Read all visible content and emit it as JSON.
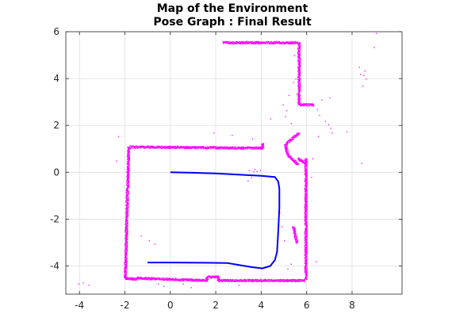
{
  "chart_data": {
    "type": "scatter",
    "title": "Map of the Environment",
    "subtitle": "Pose Graph : Final Result",
    "xlabel": "",
    "ylabel": "",
    "xlim": [
      -4.6,
      10.2
    ],
    "ylim": [
      -5.2,
      6.0
    ],
    "x_ticks": [
      -4,
      -2,
      0,
      2,
      4,
      6,
      8
    ],
    "y_ticks": [
      -4,
      -2,
      0,
      2,
      4,
      6
    ],
    "grid": true,
    "colors": {
      "map": "#ff00ff",
      "path": "#0000ff",
      "grid": "#dfdfdf",
      "axes": "#262626"
    },
    "series": [
      {
        "role": "map",
        "walls": [
          {
            "from": [
              -1.8,
              1.1
            ],
            "to": [
              4.05,
              1.05
            ]
          },
          {
            "from": [
              4.05,
              1.05
            ],
            "to": [
              4.05,
              1.25
            ]
          },
          {
            "from": [
              -1.85,
              1.1
            ],
            "to": [
              -2.0,
              -4.5
            ]
          },
          {
            "from": [
              -2.0,
              -4.5
            ],
            "to": [
              -1.5,
              -4.55
            ]
          },
          {
            "from": [
              -1.5,
              -4.5
            ],
            "to": [
              1.6,
              -4.6
            ]
          },
          {
            "from": [
              1.6,
              -4.6
            ],
            "to": [
              1.6,
              -4.45
            ]
          },
          {
            "from": [
              1.6,
              -4.45
            ],
            "to": [
              2.1,
              -4.45
            ]
          },
          {
            "from": [
              2.1,
              -4.45
            ],
            "to": [
              2.1,
              -4.6
            ]
          },
          {
            "from": [
              2.1,
              -4.6
            ],
            "to": [
              5.9,
              -4.6
            ]
          },
          {
            "from": [
              5.95,
              -4.55
            ],
            "to": [
              5.95,
              0.6
            ]
          },
          {
            "from": [
              5.6,
              0.6
            ],
            "to": [
              5.95,
              0.4
            ]
          },
          {
            "from": [
              2.3,
              5.55
            ],
            "to": [
              5.65,
              5.55
            ]
          },
          {
            "from": [
              5.65,
              5.55
            ],
            "to": [
              5.65,
              2.9
            ]
          },
          {
            "from": [
              5.65,
              2.9
            ],
            "to": [
              6.3,
              2.9
            ]
          },
          {
            "from": [
              5.4,
              1.5
            ],
            "to": [
              5.65,
              1.7
            ]
          },
          {
            "from": [
              5.05,
              1.2
            ],
            "to": [
              5.4,
              1.5
            ]
          },
          {
            "from": [
              5.05,
              1.2
            ],
            "to": [
              5.15,
              0.75
            ]
          },
          {
            "from": [
              5.15,
              0.75
            ],
            "to": [
              5.6,
              0.35
            ]
          },
          {
            "from": [
              5.4,
              -2.3
            ],
            "to": [
              5.55,
              -3.0
            ]
          }
        ],
        "scatter": [
          [
            -4.05,
            -4.75
          ],
          [
            -3.85,
            -4.7
          ],
          [
            -3.6,
            -4.8
          ],
          [
            -2.3,
            1.55
          ],
          [
            -2.4,
            0.5
          ],
          [
            -1.3,
            -2.7
          ],
          [
            -0.95,
            -2.9
          ],
          [
            -0.7,
            -3.05
          ],
          [
            -0.55,
            -4.75
          ],
          [
            -0.3,
            -4.85
          ],
          [
            0.55,
            -4.75
          ],
          [
            0.9,
            -4.9
          ],
          [
            1.9,
            1.7
          ],
          [
            2.7,
            1.6
          ],
          [
            3.0,
            -4.8
          ],
          [
            3.6,
            1.45
          ],
          [
            4.4,
            2.3
          ],
          [
            3.4,
            -0.35
          ],
          [
            3.55,
            -0.2
          ],
          [
            3.7,
            0.15
          ],
          [
            3.8,
            0.05
          ],
          [
            3.95,
            0.1
          ],
          [
            3.65,
            0.05
          ],
          [
            3.45,
            0.1
          ],
          [
            5.05,
            2.4
          ],
          [
            5.1,
            2.65
          ],
          [
            4.95,
            2.9
          ],
          [
            5.2,
            3.3
          ],
          [
            5.3,
            2.1
          ],
          [
            4.8,
            -1.7
          ],
          [
            4.9,
            -2.3
          ],
          [
            5.0,
            -2.9
          ],
          [
            5.3,
            -3.9
          ],
          [
            5.15,
            -4.1
          ],
          [
            6.45,
            2.7
          ],
          [
            6.55,
            2.45
          ],
          [
            6.8,
            2.2
          ],
          [
            6.95,
            2.05
          ],
          [
            7.05,
            1.9
          ],
          [
            6.65,
            3.1
          ],
          [
            7.1,
            1.7
          ],
          [
            6.5,
            1.55
          ],
          [
            8.3,
            4.5
          ],
          [
            8.35,
            4.2
          ],
          [
            8.5,
            4.15
          ],
          [
            8.6,
            4.0
          ],
          [
            8.55,
            4.35
          ],
          [
            8.4,
            0.4
          ],
          [
            8.95,
            5.35
          ],
          [
            9.05,
            5.95
          ],
          [
            7.75,
            1.75
          ],
          [
            5.45,
            5.0
          ],
          [
            5.5,
            4.0
          ],
          [
            5.4,
            3.85
          ],
          [
            5.55,
            3.35
          ],
          [
            6.25,
            0.6
          ],
          [
            6.2,
            -0.2
          ],
          [
            6.4,
            -3.8
          ],
          [
            7.0,
            3.2
          ],
          [
            8.45,
            3.7
          ]
        ]
      },
      {
        "role": "path",
        "points": [
          [
            0.0,
            0.0
          ],
          [
            1.0,
            -0.02
          ],
          [
            2.0,
            -0.05
          ],
          [
            3.0,
            -0.1
          ],
          [
            4.0,
            -0.15
          ],
          [
            4.6,
            -0.2
          ],
          [
            4.75,
            -0.4
          ],
          [
            4.8,
            -0.7
          ],
          [
            4.8,
            -1.5
          ],
          [
            4.75,
            -2.5
          ],
          [
            4.7,
            -3.4
          ],
          [
            4.6,
            -3.75
          ],
          [
            4.4,
            -4.0
          ],
          [
            4.05,
            -4.1
          ],
          [
            3.6,
            -4.05
          ],
          [
            3.0,
            -3.95
          ],
          [
            2.5,
            -3.87
          ],
          [
            1.5,
            -3.86
          ],
          [
            0.0,
            -3.85
          ],
          [
            -1.0,
            -3.85
          ]
        ]
      }
    ]
  }
}
